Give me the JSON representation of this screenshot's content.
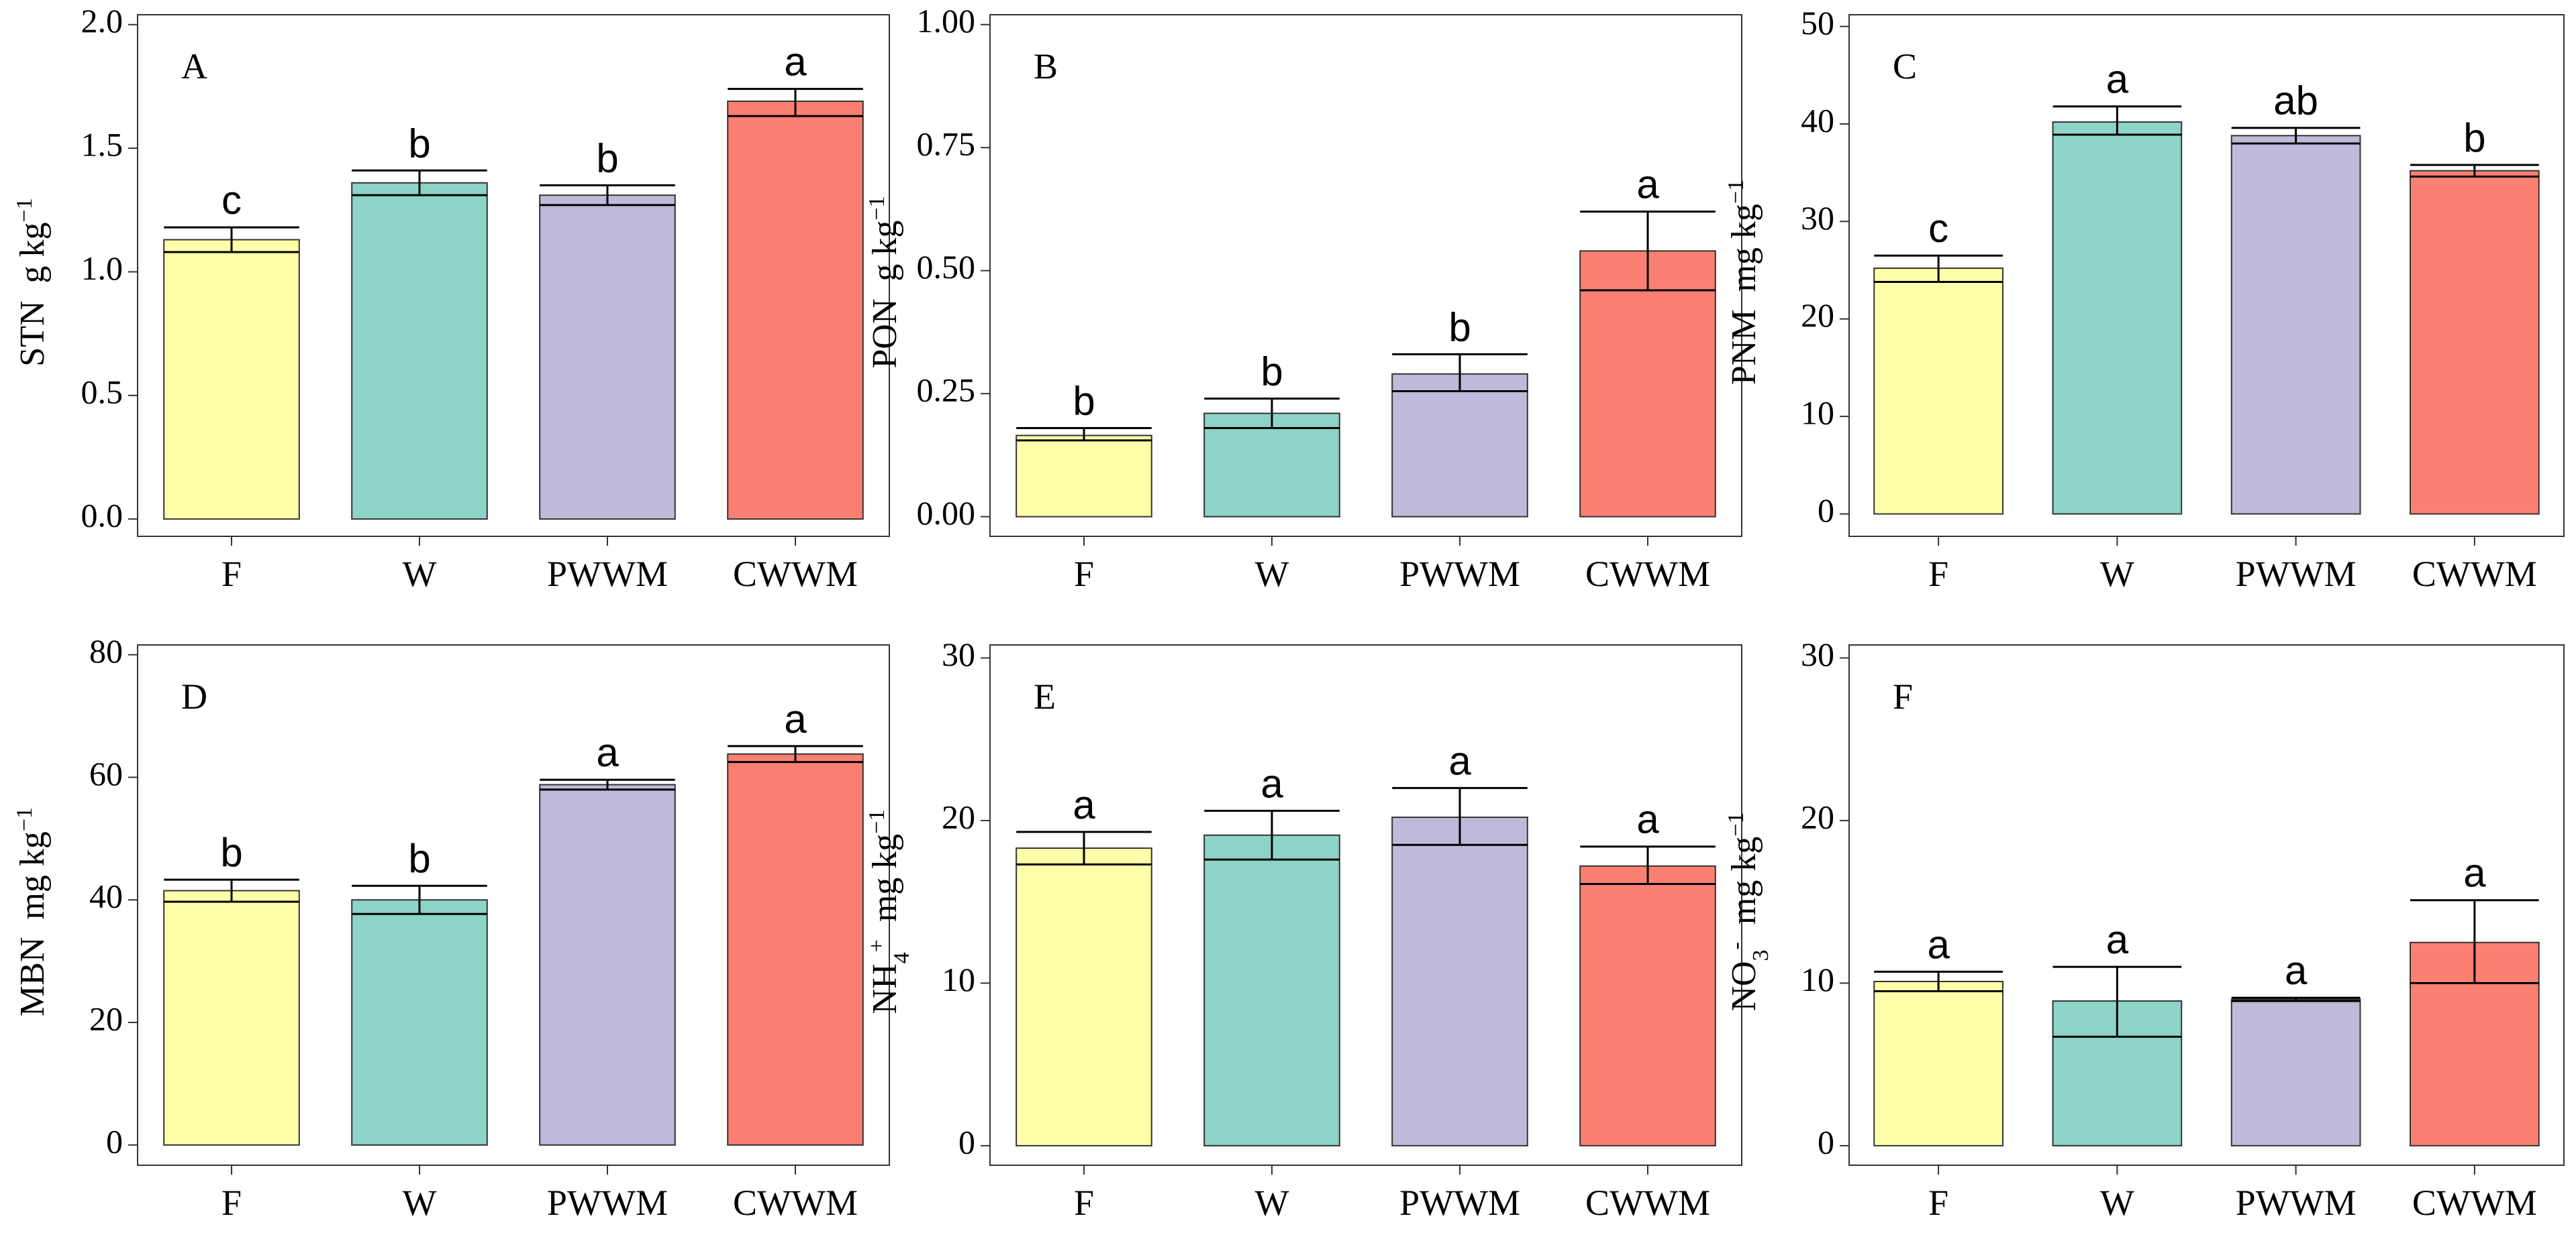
{
  "chart_data": [
    {
      "panel_label": "A",
      "type": "bar",
      "ylabel": {
        "main": "STN",
        "unit": "g kg",
        "unit_sup": "−1"
      },
      "categories": [
        "F",
        "W",
        "PWWM",
        "CWWM"
      ],
      "values": [
        1.13,
        1.36,
        1.31,
        1.69
      ],
      "error_low": [
        1.08,
        1.31,
        1.27,
        1.63
      ],
      "error_high": [
        1.18,
        1.41,
        1.35,
        1.74
      ],
      "significance": [
        "c",
        "b",
        "b",
        "a"
      ],
      "ylim": [
        -0.07,
        2.04
      ],
      "yticks": [
        0.0,
        0.5,
        1.0,
        1.5,
        2.0
      ],
      "ytick_labels": [
        "0.0",
        "0.5",
        "1.0",
        "1.5",
        "2.0"
      ]
    },
    {
      "panel_label": "B",
      "type": "bar",
      "ylabel": {
        "main": "PON",
        "unit": "g kg",
        "unit_sup": "−1"
      },
      "categories": [
        "F",
        "W",
        "PWWM",
        "CWWM"
      ],
      "values": [
        0.165,
        0.21,
        0.29,
        0.54
      ],
      "error_low": [
        0.155,
        0.18,
        0.255,
        0.46
      ],
      "error_high": [
        0.18,
        0.24,
        0.33,
        0.62
      ],
      "significance": [
        "b",
        "b",
        "b",
        "a"
      ],
      "ylim": [
        -0.04,
        1.02
      ],
      "yticks": [
        0.0,
        0.25,
        0.5,
        0.75,
        1.0
      ],
      "ytick_labels": [
        "0.00",
        "0.25",
        "0.50",
        "0.75",
        "1.00"
      ]
    },
    {
      "panel_label": "C",
      "type": "bar",
      "ylabel": {
        "main": "PNM",
        "unit": "mg kg",
        "unit_sup": "−1"
      },
      "categories": [
        "F",
        "W",
        "PWWM",
        "CWWM"
      ],
      "values": [
        25.2,
        40.2,
        38.8,
        35.2
      ],
      "error_low": [
        23.8,
        38.9,
        38.0,
        34.6
      ],
      "error_high": [
        26.5,
        41.8,
        39.6,
        35.8
      ],
      "significance": [
        "c",
        "a",
        "ab",
        "b"
      ],
      "ylim": [
        -2.3,
        51.2
      ],
      "yticks": [
        0,
        10,
        20,
        30,
        40,
        50
      ],
      "ytick_labels": [
        "0",
        "10",
        "20",
        "30",
        "40",
        "50"
      ]
    },
    {
      "panel_label": "D",
      "type": "bar",
      "ylabel": {
        "main": "MBN",
        "unit": "mg kg",
        "unit_sup": "−1"
      },
      "categories": [
        "F",
        "W",
        "PWWM",
        "CWWM"
      ],
      "values": [
        41.5,
        40.0,
        58.8,
        63.8
      ],
      "error_low": [
        39.7,
        37.7,
        58.0,
        62.5
      ],
      "error_high": [
        43.3,
        42.3,
        59.6,
        65.1
      ],
      "significance": [
        "b",
        "b",
        "a",
        "a"
      ],
      "ylim": [
        -3.3,
        81.6
      ],
      "yticks": [
        0,
        20,
        40,
        60,
        80
      ],
      "ytick_labels": [
        "0",
        "20",
        "40",
        "60",
        "80"
      ]
    },
    {
      "panel_label": "E",
      "type": "bar",
      "ylabel": {
        "main": "NH",
        "main_sub": "4",
        "main_sup": "+",
        "unit": "mg kg",
        "unit_sup": "−1"
      },
      "categories": [
        "F",
        "W",
        "PWWM",
        "CWWM"
      ],
      "values": [
        18.3,
        19.1,
        20.2,
        17.2
      ],
      "error_low": [
        17.3,
        17.6,
        18.5,
        16.1
      ],
      "error_high": [
        19.3,
        20.6,
        22.0,
        18.4
      ],
      "significance": [
        "a",
        "a",
        "a",
        "a"
      ],
      "ylim": [
        -1.2,
        30.8
      ],
      "yticks": [
        0,
        10,
        20,
        30
      ],
      "ytick_labels": [
        "0",
        "10",
        "20",
        "30"
      ]
    },
    {
      "panel_label": "F",
      "type": "bar",
      "ylabel": {
        "main": "NO",
        "main_sub": "3",
        "main_sup": "-",
        "unit": "mg kg",
        "unit_sup": "−1"
      },
      "categories": [
        "F",
        "W",
        "PWWM",
        "CWWM"
      ],
      "values": [
        10.1,
        8.9,
        9.0,
        12.5
      ],
      "error_low": [
        9.5,
        6.7,
        8.9,
        10.0
      ],
      "error_high": [
        10.7,
        11.0,
        9.1,
        15.1
      ],
      "significance": [
        "a",
        "a",
        "a",
        "a"
      ],
      "ylim": [
        -1.2,
        30.8
      ],
      "yticks": [
        0,
        10,
        20,
        30
      ],
      "ytick_labels": [
        "0",
        "10",
        "20",
        "30"
      ]
    }
  ],
  "colors": {
    "bars": [
      "#FFFFAA",
      "#8DD3C7",
      "#BEBADA",
      "#FB8072"
    ],
    "outline": "#333333",
    "axis": "#333333",
    "text": "#000000",
    "background": "#ffffff"
  }
}
